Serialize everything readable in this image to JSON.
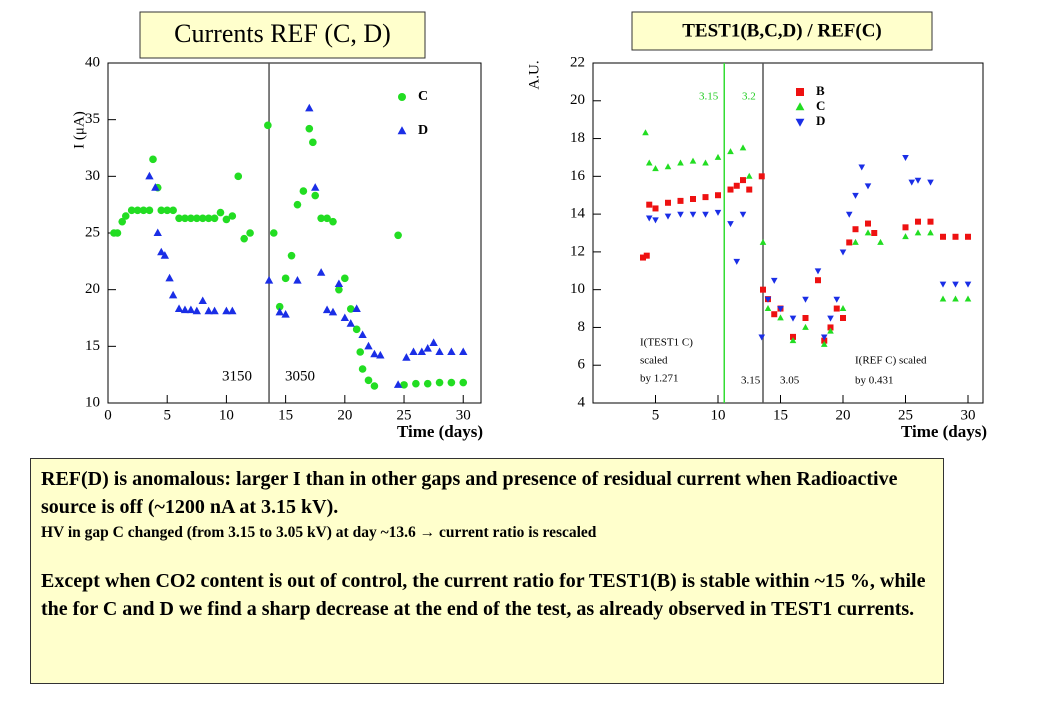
{
  "chart_data": [
    {
      "type": "scatter",
      "title": "Currents REF (C, D)",
      "xlabel": "Time (days)",
      "ylabel": "I (μA)",
      "xlim": [
        0,
        31.5
      ],
      "ylim": [
        10,
        40
      ],
      "xticks": [
        0,
        5,
        10,
        15,
        20,
        25,
        30
      ],
      "yticks": [
        10,
        15,
        20,
        25,
        30,
        35,
        40
      ],
      "vlines": [
        {
          "x": 13.6,
          "color": "#555555"
        }
      ],
      "annotations": [
        "3150",
        "3050"
      ],
      "series": [
        {
          "name": "C",
          "color": "#22dd22",
          "marker": "circle",
          "x": [
            0.5,
            0.8,
            1.2,
            1.5,
            2,
            2.5,
            3,
            3.5,
            3.8,
            4.2,
            4.5,
            5,
            5.5,
            6,
            6.5,
            7,
            7.5,
            8,
            8.5,
            9,
            9.5,
            10,
            10.5,
            11,
            11.5,
            12,
            13.5,
            14,
            14.5,
            15,
            15.5,
            16,
            16.5,
            17,
            17.3,
            17.5,
            18,
            18.5,
            19,
            19.5,
            20,
            20.5,
            21,
            21.3,
            21.5,
            22,
            22.5,
            24.5,
            25,
            26,
            27,
            28,
            29,
            30
          ],
          "values": [
            25,
            25,
            26,
            26.5,
            27,
            27,
            27,
            27,
            31.5,
            29,
            27,
            27,
            27,
            26.3,
            26.3,
            26.3,
            26.3,
            26.3,
            26.3,
            26.3,
            26.8,
            26.2,
            26.5,
            30,
            24.5,
            25,
            34.5,
            25,
            18.5,
            21,
            23,
            27.5,
            28.7,
            34.2,
            33,
            28.3,
            26.3,
            26.3,
            26,
            20,
            21,
            18.3,
            16.5,
            14.5,
            13,
            12,
            11.5,
            24.8,
            11.6,
            11.7,
            11.7,
            11.8,
            11.8,
            11.8
          ]
        },
        {
          "name": "D",
          "color": "#1a2ee6",
          "marker": "triangle-up",
          "x": [
            3.5,
            4,
            4.2,
            4.5,
            4.8,
            5.2,
            5.5,
            6,
            6.5,
            7,
            7.5,
            8,
            8.5,
            9,
            10,
            10.5,
            13.6,
            14.5,
            15,
            16,
            17,
            17.5,
            18,
            18.5,
            19,
            19.5,
            20,
            20.5,
            21,
            21.5,
            22,
            22.5,
            23,
            24.5,
            25.2,
            25.8,
            26.5,
            27,
            27.5,
            28,
            29,
            30
          ],
          "values": [
            30,
            29,
            25,
            23.3,
            23,
            21,
            19.5,
            18.3,
            18.2,
            18.2,
            18.1,
            19,
            18.1,
            18.1,
            18.1,
            18.1,
            20.8,
            18,
            17.8,
            20.8,
            36,
            29,
            21.5,
            18.2,
            18,
            20.5,
            17.5,
            17,
            18.3,
            16,
            15,
            14.3,
            14.2,
            11.6,
            14,
            14.5,
            14.5,
            14.8,
            15.3,
            14.5,
            14.5,
            14.5
          ]
        }
      ]
    },
    {
      "type": "scatter",
      "title": "TEST1(B,C,D) / REF(C)",
      "xlabel": "Time (days)",
      "ylabel": "A.U.",
      "xlim": [
        0,
        31.2
      ],
      "ylim": [
        4,
        22
      ],
      "xticks": [
        5,
        10,
        15,
        20,
        25,
        30
      ],
      "yticks": [
        4,
        6,
        8,
        10,
        12,
        14,
        16,
        18,
        20,
        22
      ],
      "vlines": [
        {
          "x": 10.5,
          "color": "#33dd33"
        },
        {
          "x": 13.6,
          "color": "#555555"
        }
      ],
      "annotations": [
        "3.15",
        "3.2",
        "I(TEST1 C)",
        "scaled",
        "by 1.271",
        "3.15",
        "3.05",
        "I(REF C) scaled",
        "by 0.431"
      ],
      "series": [
        {
          "name": "B",
          "color": "#ee1111",
          "marker": "square",
          "x": [
            4,
            4.3,
            4.5,
            5,
            6,
            7,
            8,
            9,
            10,
            11,
            11.5,
            12,
            12.5,
            13.5,
            13.6,
            14,
            14.5,
            15,
            16,
            17,
            18,
            18.5,
            19,
            19.5,
            20,
            20.5,
            21,
            22,
            22.5,
            25,
            26,
            27,
            28,
            29,
            30
          ],
          "values": [
            11.7,
            11.8,
            14.5,
            14.3,
            14.6,
            14.7,
            14.8,
            14.9,
            15,
            15.3,
            15.5,
            15.8,
            15.3,
            16,
            10,
            9.5,
            8.7,
            9,
            7.5,
            8.5,
            10.5,
            7.3,
            8,
            9,
            8.5,
            12.5,
            13.2,
            13.5,
            13,
            13.3,
            13.6,
            13.6,
            12.8,
            12.8,
            12.8
          ]
        },
        {
          "name": "C",
          "color": "#22dd22",
          "marker": "triangle-up",
          "x": [
            4.2,
            4.5,
            5,
            6,
            7,
            8,
            9,
            10,
            11,
            12,
            12.5,
            13.6,
            14,
            15,
            16,
            17,
            18.5,
            19,
            20,
            21,
            22,
            23,
            25,
            26,
            27,
            28,
            29,
            30
          ],
          "values": [
            18.3,
            16.7,
            16.4,
            16.5,
            16.7,
            16.8,
            16.7,
            17,
            17.3,
            17.5,
            16,
            12.5,
            9,
            8.5,
            7.3,
            8,
            7.1,
            7.8,
            9,
            12.5,
            13,
            12.5,
            12.8,
            13,
            13,
            9.5,
            9.5,
            9.5
          ]
        },
        {
          "name": "D",
          "color": "#1a2ee6",
          "marker": "triangle-down",
          "x": [
            4.5,
            5,
            6,
            7,
            8,
            9,
            10,
            11,
            11.5,
            12,
            13.5,
            14,
            14.5,
            15,
            16,
            17,
            18,
            18.5,
            19,
            19.5,
            20,
            20.5,
            21,
            21.5,
            22,
            25,
            25.5,
            26,
            27,
            28,
            29,
            30
          ],
          "values": [
            13.8,
            13.7,
            13.9,
            14,
            14,
            14,
            14.1,
            13.5,
            11.5,
            14,
            7.5,
            9.5,
            10.5,
            9,
            8.5,
            9.5,
            11,
            7.5,
            8.5,
            9.5,
            12,
            14,
            15,
            16.5,
            15.5,
            17,
            15.7,
            15.8,
            15.7,
            10.3,
            10.3,
            10.3
          ]
        }
      ]
    }
  ],
  "text_box": {
    "paragraphs": [
      "REF(D) is anomalous: larger I than in other gaps and presence of residual current when Radioactive source is off (~1200 nA at 3.15 kV).",
      "HV in gap C changed (from 3.15 to 3.05 kV) at day ~13.6 → current ratio is rescaled",
      "Except when CO2 content is out of control, the current ratio for TEST1(B) is stable within ~15 %, while the for C and D we find a sharp decrease at the end of the test, as already observed in TEST1 currents."
    ]
  }
}
